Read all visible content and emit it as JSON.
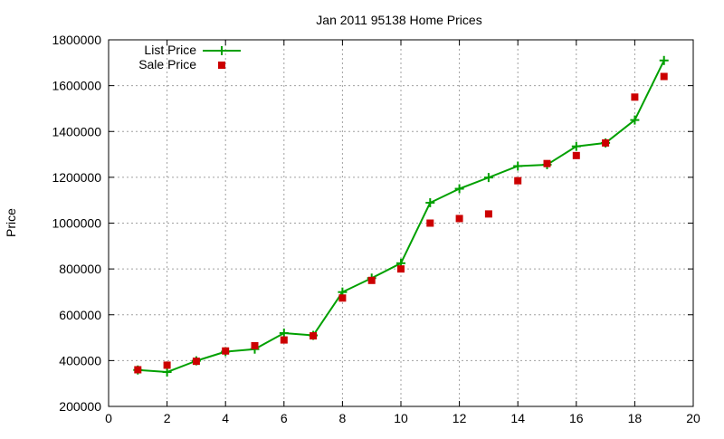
{
  "chart_data": {
    "type": "line",
    "title": "Jan 2011 95138 Home Prices",
    "xlabel": "",
    "ylabel": "Price",
    "xlim": [
      0,
      20
    ],
    "ylim": [
      200000,
      1800000
    ],
    "x_ticks": [
      0,
      2,
      4,
      6,
      8,
      10,
      12,
      14,
      16,
      18,
      20
    ],
    "y_ticks": [
      200000,
      400000,
      600000,
      800000,
      1000000,
      1200000,
      1400000,
      1600000,
      1800000
    ],
    "grid": true,
    "legend_position": "top-left",
    "series": [
      {
        "name": "List Price",
        "style": "line-with-plus-markers",
        "color": "#00a000",
        "x": [
          1,
          2,
          3,
          4,
          5,
          6,
          7,
          8,
          9,
          10,
          11,
          12,
          13,
          14,
          15,
          16,
          17,
          18,
          19
        ],
        "values": [
          359000,
          350000,
          399000,
          439000,
          450000,
          520000,
          510000,
          699000,
          760000,
          825000,
          1089000,
          1150000,
          1199000,
          1249000,
          1255000,
          1335000,
          1350000,
          1450000,
          1710000
        ]
      },
      {
        "name": "Sale Price",
        "style": "square-markers",
        "color": "#cc0000",
        "x": [
          1,
          2,
          3,
          4,
          5,
          6,
          7,
          8,
          9,
          10,
          11,
          12,
          13,
          14,
          15,
          16,
          17,
          18,
          19
        ],
        "values": [
          360000,
          380000,
          397000,
          442000,
          465000,
          490000,
          508000,
          673000,
          750000,
          800000,
          1000000,
          1020000,
          1040000,
          1185000,
          1260000,
          1295000,
          1350000,
          1550000,
          1640000
        ]
      }
    ]
  }
}
